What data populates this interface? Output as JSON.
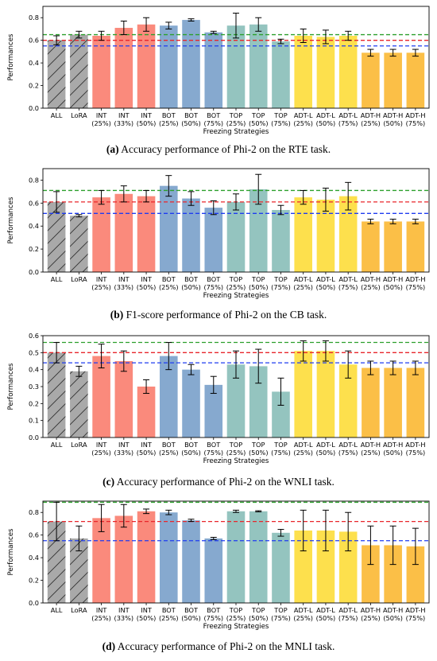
{
  "colors": {
    "ALL": "#a9a9a9",
    "LoRA": "#a9a9a9",
    "INT": "#fa8a7c",
    "BOT": "#86a9cf",
    "TOP": "#94c4bf",
    "ADT-L": "#fde04d",
    "ADT-H": "#fbbf47",
    "green_line": "#2ca02c",
    "red_line": "#e8262b",
    "blue_line": "#1f3cf0"
  },
  "categories": [
    [
      "ALL",
      ""
    ],
    [
      "LoRA",
      ""
    ],
    [
      "INT",
      "(25%)"
    ],
    [
      "INT",
      "(33%)"
    ],
    [
      "INT",
      "(50%)"
    ],
    [
      "BOT",
      "(25%)"
    ],
    [
      "BOT",
      "(50%)"
    ],
    [
      "BOT",
      "(75%)"
    ],
    [
      "TOP",
      "(25%)"
    ],
    [
      "TOP",
      "(50%)"
    ],
    [
      "TOP",
      "(75%)"
    ],
    [
      "ADT-L",
      "(25%)"
    ],
    [
      "ADT-L",
      "(50%)"
    ],
    [
      "ADT-L",
      "(75%)"
    ],
    [
      "ADT-H",
      "(25%)"
    ],
    [
      "ADT-H",
      "(50%)"
    ],
    [
      "ADT-H",
      "(75%)"
    ]
  ],
  "chart_data": [
    {
      "type": "bar",
      "caption_label": "(a)",
      "caption_text": "Accuracy performance of Phi-2 on the RTE task.",
      "xlabel": "Freezing Strategies",
      "ylabel": "Performances",
      "ylim": [
        0,
        0.9
      ],
      "yticks": [
        0.0,
        0.2,
        0.4,
        0.6,
        0.8
      ],
      "values": [
        0.6,
        0.65,
        0.64,
        0.71,
        0.74,
        0.73,
        0.78,
        0.67,
        0.73,
        0.74,
        0.59,
        0.64,
        0.63,
        0.64,
        0.49,
        0.49,
        0.49
      ],
      "errors": [
        0.04,
        0.03,
        0.04,
        0.06,
        0.06,
        0.03,
        0.01,
        0.01,
        0.11,
        0.06,
        0.02,
        0.06,
        0.06,
        0.04,
        0.03,
        0.03,
        0.03
      ],
      "hlines": {
        "green": 0.65,
        "red": 0.6,
        "blue": 0.55
      }
    },
    {
      "type": "bar",
      "caption_label": "(b)",
      "caption_text": "F1-score performance of Phi-2 on the CB task.",
      "xlabel": "Freezing Strategies",
      "ylabel": "Performances",
      "ylim": [
        0,
        0.9
      ],
      "yticks": [
        0.0,
        0.2,
        0.4,
        0.6,
        0.8
      ],
      "values": [
        0.61,
        0.49,
        0.65,
        0.68,
        0.66,
        0.75,
        0.64,
        0.56,
        0.61,
        0.72,
        0.54,
        0.65,
        0.63,
        0.66,
        0.44,
        0.44,
        0.44
      ],
      "errors": [
        0.09,
        0.01,
        0.06,
        0.07,
        0.05,
        0.09,
        0.06,
        0.06,
        0.07,
        0.13,
        0.04,
        0.06,
        0.1,
        0.12,
        0.02,
        0.02,
        0.02
      ],
      "hlines": {
        "green": 0.71,
        "red": 0.61,
        "blue": 0.51
      }
    },
    {
      "type": "bar",
      "caption_label": "(c)",
      "caption_text": "Accuracy performance of Phi-2 on the WNLI task.",
      "xlabel": "Freezing Strategies",
      "ylabel": "Performances",
      "ylim": [
        0,
        0.6
      ],
      "yticks": [
        0.0,
        0.1,
        0.2,
        0.3,
        0.4,
        0.5,
        0.6
      ],
      "values": [
        0.5,
        0.39,
        0.48,
        0.45,
        0.3,
        0.48,
        0.4,
        0.31,
        0.43,
        0.42,
        0.27,
        0.51,
        0.51,
        0.43,
        0.41,
        0.41,
        0.41
      ],
      "errors": [
        0.06,
        0.03,
        0.07,
        0.06,
        0.04,
        0.08,
        0.03,
        0.05,
        0.08,
        0.1,
        0.08,
        0.06,
        0.06,
        0.08,
        0.04,
        0.04,
        0.04
      ],
      "hlines": {
        "green": 0.56,
        "red": 0.5,
        "blue": 0.44
      }
    },
    {
      "type": "bar",
      "caption_label": "(d)",
      "caption_text": "Accuracy performance of Phi-2 on the MNLI task.",
      "xlabel": "Freezing Strategies",
      "ylabel": "Performances",
      "ylim": [
        0,
        0.9
      ],
      "yticks": [
        0.0,
        0.2,
        0.4,
        0.6,
        0.8
      ],
      "values": [
        0.72,
        0.57,
        0.75,
        0.77,
        0.81,
        0.8,
        0.73,
        0.57,
        0.81,
        0.81,
        0.62,
        0.64,
        0.64,
        0.63,
        0.51,
        0.51,
        0.5
      ],
      "errors": [
        0.17,
        0.11,
        0.12,
        0.1,
        0.02,
        0.02,
        0.01,
        0.01,
        0.01,
        0.005,
        0.03,
        0.18,
        0.18,
        0.17,
        0.17,
        0.17,
        0.16
      ],
      "hlines": {
        "green": 0.89,
        "red": 0.72,
        "blue": 0.55
      }
    }
  ]
}
